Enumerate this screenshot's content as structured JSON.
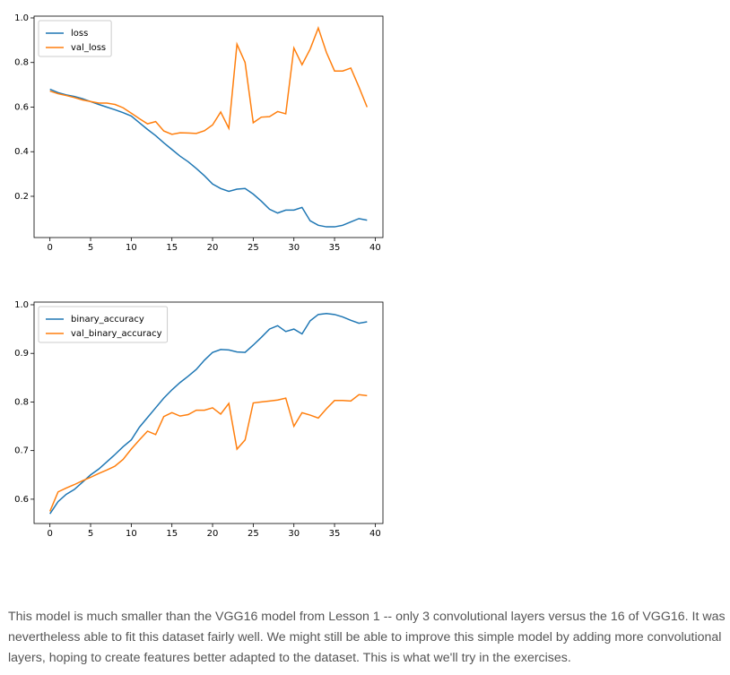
{
  "chart_data": [
    {
      "type": "line",
      "x": [
        0,
        1,
        2,
        3,
        4,
        5,
        6,
        7,
        8,
        9,
        10,
        11,
        12,
        13,
        14,
        15,
        16,
        17,
        18,
        19,
        20,
        21,
        22,
        23,
        24,
        25,
        26,
        27,
        28,
        29,
        30,
        31,
        32,
        33,
        34,
        35,
        36,
        37,
        38,
        39
      ],
      "series": [
        {
          "name": "loss",
          "color": "#1f77b4",
          "values": [
            0.68,
            0.665,
            0.655,
            0.648,
            0.638,
            0.625,
            0.612,
            0.6,
            0.588,
            0.575,
            0.56,
            0.53,
            0.5,
            0.472,
            0.44,
            0.41,
            0.38,
            0.355,
            0.325,
            0.292,
            0.255,
            0.235,
            0.222,
            0.232,
            0.235,
            0.21,
            0.178,
            0.142,
            0.125,
            0.138,
            0.138,
            0.15,
            0.09,
            0.07,
            0.063,
            0.063,
            0.07,
            0.085,
            0.1,
            0.093
          ]
        },
        {
          "name": "val_loss",
          "color": "#ff7f0e",
          "values": [
            0.672,
            0.66,
            0.652,
            0.643,
            0.632,
            0.625,
            0.618,
            0.618,
            0.612,
            0.597,
            0.573,
            0.548,
            0.525,
            0.535,
            0.493,
            0.478,
            0.485,
            0.484,
            0.482,
            0.494,
            0.52,
            0.578,
            0.505,
            0.882,
            0.8,
            0.53,
            0.555,
            0.557,
            0.58,
            0.57,
            0.865,
            0.79,
            0.86,
            0.955,
            0.845,
            0.762,
            0.762,
            0.775,
            0.69,
            0.6
          ]
        }
      ],
      "xlim": [
        -1.95,
        40.95
      ],
      "xticks": [
        0,
        5,
        10,
        15,
        20,
        25,
        30,
        35,
        40
      ],
      "ylim": [
        0.015,
        1.008
      ],
      "yticks": [
        0.2,
        0.4,
        0.6,
        0.8,
        {
          "value": 1,
          "label": "1.0"
        }
      ],
      "legend": "upper left"
    },
    {
      "type": "line",
      "x": [
        0,
        1,
        2,
        3,
        4,
        5,
        6,
        7,
        8,
        9,
        10,
        11,
        12,
        13,
        14,
        15,
        16,
        17,
        18,
        19,
        20,
        21,
        22,
        23,
        24,
        25,
        26,
        27,
        28,
        29,
        30,
        31,
        32,
        33,
        34,
        35,
        36,
        37,
        38,
        39
      ],
      "series": [
        {
          "name": "binary_accuracy",
          "color": "#1f77b4",
          "values": [
            0.57,
            0.595,
            0.61,
            0.62,
            0.635,
            0.65,
            0.662,
            0.677,
            0.692,
            0.708,
            0.722,
            0.748,
            0.768,
            0.788,
            0.808,
            0.825,
            0.84,
            0.853,
            0.867,
            0.886,
            0.902,
            0.908,
            0.907,
            0.903,
            0.902,
            0.917,
            0.933,
            0.95,
            0.957,
            0.945,
            0.95,
            0.94,
            0.967,
            0.98,
            0.982,
            0.98,
            0.975,
            0.968,
            0.962,
            0.965
          ]
        },
        {
          "name": "val_binary_accuracy",
          "color": "#ff7f0e",
          "values": [
            0.575,
            0.615,
            0.623,
            0.63,
            0.638,
            0.645,
            0.653,
            0.66,
            0.668,
            0.682,
            0.703,
            0.722,
            0.74,
            0.733,
            0.77,
            0.778,
            0.771,
            0.774,
            0.783,
            0.783,
            0.788,
            0.775,
            0.797,
            0.703,
            0.722,
            0.798,
            0.8,
            0.802,
            0.804,
            0.808,
            0.75,
            0.778,
            0.773,
            0.767,
            0.786,
            0.803,
            0.803,
            0.802,
            0.815,
            0.813
          ]
        }
      ],
      "xlim": [
        -1.95,
        40.95
      ],
      "xticks": [
        0,
        5,
        10,
        15,
        20,
        25,
        30,
        35,
        40
      ],
      "ylim": [
        0.55,
        1.0055
      ],
      "yticks": [
        0.6,
        0.7,
        0.8,
        0.9,
        {
          "value": 1,
          "label": "1.0"
        }
      ],
      "legend": "upper left"
    }
  ],
  "paragraph": "This model is much smaller than the VGG16 model from Lesson 1 -- only 3 convolutional layers versus the 16 of VGG16. It was nevertheless able to fit this dataset fairly well. We might still be able to improve this simple model by adding more convolutional layers, hoping to create features better adapted to the dataset. This is what we'll try in the exercises."
}
